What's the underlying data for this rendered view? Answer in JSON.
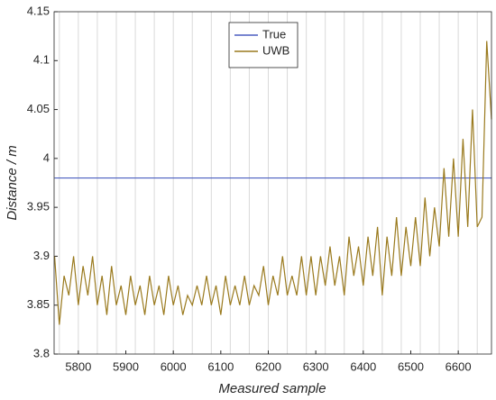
{
  "chart_data": {
    "type": "line",
    "xlabel": "Measured sample",
    "ylabel": "Distance / m",
    "xlim": [
      5749,
      6670
    ],
    "ylim": [
      3.8,
      4.15
    ],
    "xticks": [
      5800,
      5900,
      6000,
      6100,
      6200,
      6300,
      6400,
      6500,
      6600
    ],
    "yticks": [
      3.8,
      3.85,
      3.9,
      3.95,
      4,
      4.05,
      4.1,
      4.15
    ],
    "xgrid": [
      5760,
      5800,
      5840,
      5880,
      5920,
      5960,
      6000,
      6040,
      6080,
      6120,
      6160,
      6200,
      6240,
      6280,
      6320,
      6360,
      6400,
      6440,
      6480,
      6520,
      6560,
      6600,
      6640
    ],
    "legend": "top-center",
    "x": [
      5750,
      5760,
      5770,
      5780,
      5790,
      5800,
      5810,
      5820,
      5830,
      5840,
      5850,
      5860,
      5870,
      5880,
      5890,
      5900,
      5910,
      5920,
      5930,
      5940,
      5950,
      5960,
      5970,
      5980,
      5990,
      6000,
      6010,
      6020,
      6030,
      6040,
      6050,
      6060,
      6070,
      6080,
      6090,
      6100,
      6110,
      6120,
      6130,
      6140,
      6150,
      6160,
      6170,
      6180,
      6190,
      6200,
      6210,
      6220,
      6230,
      6240,
      6250,
      6260,
      6270,
      6280,
      6290,
      6300,
      6310,
      6320,
      6330,
      6340,
      6350,
      6360,
      6370,
      6380,
      6390,
      6400,
      6410,
      6420,
      6430,
      6440,
      6450,
      6460,
      6470,
      6480,
      6490,
      6500,
      6510,
      6520,
      6530,
      6540,
      6550,
      6560,
      6570,
      6580,
      6590,
      6600,
      6610,
      6620,
      6630,
      6640,
      6650,
      6660,
      6670
    ],
    "series": [
      {
        "name": "True",
        "color": "#4b5fc0",
        "values": [
          3.98,
          3.98,
          3.98,
          3.98,
          3.98,
          3.98,
          3.98,
          3.98,
          3.98,
          3.98,
          3.98,
          3.98,
          3.98,
          3.98,
          3.98,
          3.98,
          3.98,
          3.98,
          3.98,
          3.98,
          3.98,
          3.98,
          3.98,
          3.98,
          3.98,
          3.98,
          3.98,
          3.98,
          3.98,
          3.98,
          3.98,
          3.98,
          3.98,
          3.98,
          3.98,
          3.98,
          3.98,
          3.98,
          3.98,
          3.98,
          3.98,
          3.98,
          3.98,
          3.98,
          3.98,
          3.98,
          3.98,
          3.98,
          3.98,
          3.98,
          3.98,
          3.98,
          3.98,
          3.98,
          3.98,
          3.98,
          3.98,
          3.98,
          3.98,
          3.98,
          3.98,
          3.98,
          3.98,
          3.98,
          3.98,
          3.98,
          3.98,
          3.98,
          3.98,
          3.98,
          3.98,
          3.98,
          3.98,
          3.98,
          3.98,
          3.98,
          3.98,
          3.98,
          3.98,
          3.98,
          3.98,
          3.98,
          3.98,
          3.98,
          3.98,
          3.98,
          3.98,
          3.98,
          3.98,
          3.98,
          3.98,
          3.98,
          3.98
        ]
      },
      {
        "name": "UWB",
        "color": "#9a7a1e",
        "values": [
          3.9,
          3.83,
          3.88,
          3.86,
          3.9,
          3.85,
          3.89,
          3.86,
          3.9,
          3.85,
          3.88,
          3.84,
          3.89,
          3.85,
          3.87,
          3.84,
          3.88,
          3.85,
          3.87,
          3.84,
          3.88,
          3.85,
          3.87,
          3.84,
          3.88,
          3.85,
          3.87,
          3.84,
          3.86,
          3.85,
          3.87,
          3.85,
          3.88,
          3.85,
          3.87,
          3.84,
          3.88,
          3.85,
          3.87,
          3.85,
          3.88,
          3.85,
          3.87,
          3.86,
          3.89,
          3.85,
          3.88,
          3.86,
          3.9,
          3.86,
          3.88,
          3.86,
          3.9,
          3.86,
          3.9,
          3.86,
          3.9,
          3.87,
          3.91,
          3.87,
          3.9,
          3.86,
          3.92,
          3.88,
          3.91,
          3.87,
          3.92,
          3.88,
          3.93,
          3.86,
          3.92,
          3.88,
          3.94,
          3.88,
          3.93,
          3.89,
          3.94,
          3.89,
          3.96,
          3.9,
          3.95,
          3.91,
          3.99,
          3.92,
          4.0,
          3.92,
          4.02,
          3.93,
          4.05,
          3.93,
          3.94,
          4.12,
          4.04
        ]
      }
    ]
  }
}
